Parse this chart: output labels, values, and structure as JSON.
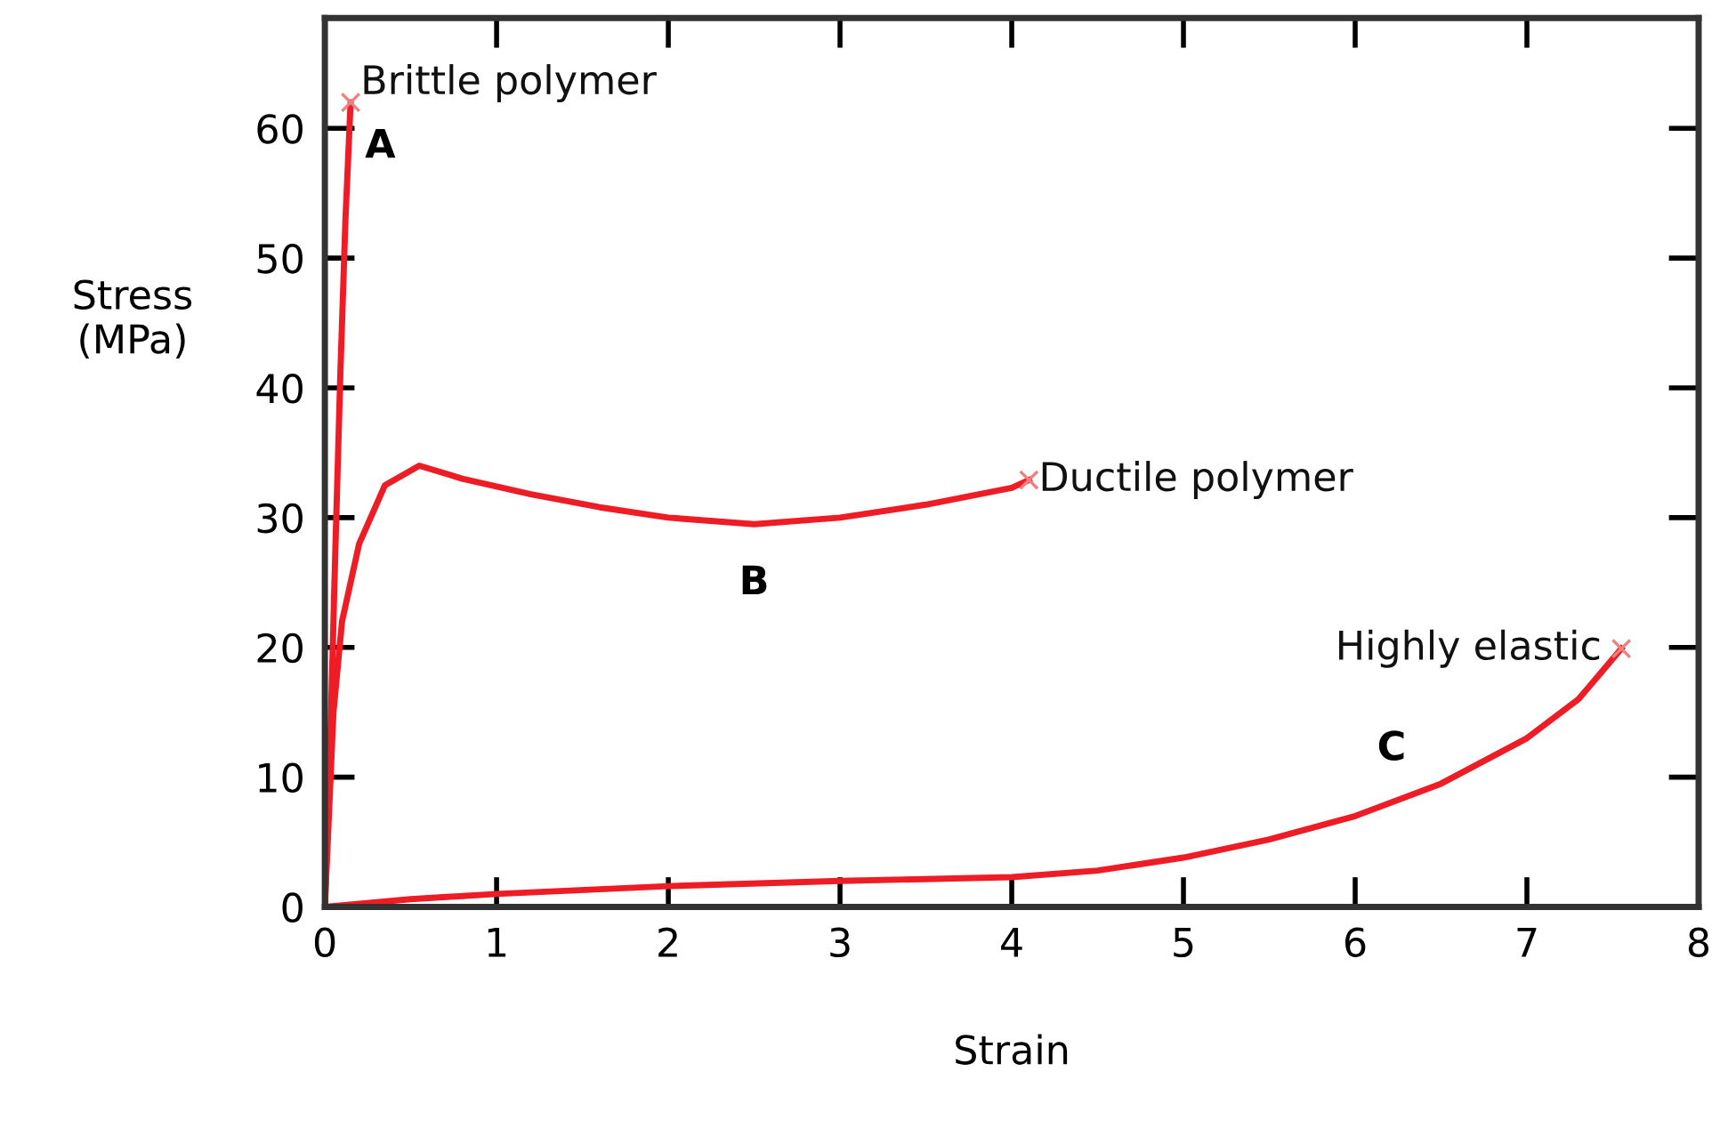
{
  "chart_data": {
    "type": "line",
    "xlabel": "Strain",
    "ylabel": "Stress\n(MPa)",
    "xlim": [
      0,
      8
    ],
    "ylim": [
      0,
      68.5
    ],
    "xticks": [
      0,
      1,
      2,
      3,
      4,
      5,
      6,
      7,
      8
    ],
    "yticks": [
      0,
      10,
      20,
      30,
      40,
      50,
      60
    ],
    "grid": false,
    "legend": false,
    "line_style": "solid",
    "series": [
      {
        "name": "Brittle polymer",
        "color": "#ee1c25",
        "x": [
          0,
          0.03,
          0.06,
          0.09,
          0.12,
          0.15
        ],
        "values": [
          0,
          12,
          27,
          41,
          53,
          62
        ]
      },
      {
        "name": "Ductile polymer",
        "color": "#ee1c25",
        "x": [
          0,
          0.05,
          0.1,
          0.2,
          0.35,
          0.55,
          0.8,
          1.2,
          1.6,
          2.0,
          2.5,
          3.0,
          3.5,
          4.0,
          4.1
        ],
        "values": [
          0,
          15,
          22,
          28,
          32.5,
          34,
          33,
          31.8,
          30.8,
          30,
          29.5,
          30,
          31,
          32.3,
          32.9
        ]
      },
      {
        "name": "Highly elastic",
        "color": "#ee1c25",
        "x": [
          0,
          0.5,
          1,
          2,
          3,
          4,
          4.5,
          5,
          5.5,
          6,
          6.5,
          7,
          7.3,
          7.55
        ],
        "values": [
          0,
          0.6,
          1,
          1.6,
          2,
          2.3,
          2.8,
          3.8,
          5.2,
          7,
          9.5,
          13,
          16,
          19.9
        ]
      }
    ],
    "annotations": [
      {
        "text": "A",
        "x": 0.15,
        "y": 62
      },
      {
        "text": "B",
        "x": 2.5,
        "y": 29.5
      },
      {
        "text": "C",
        "x": 6.5,
        "y": 9.5
      }
    ]
  }
}
